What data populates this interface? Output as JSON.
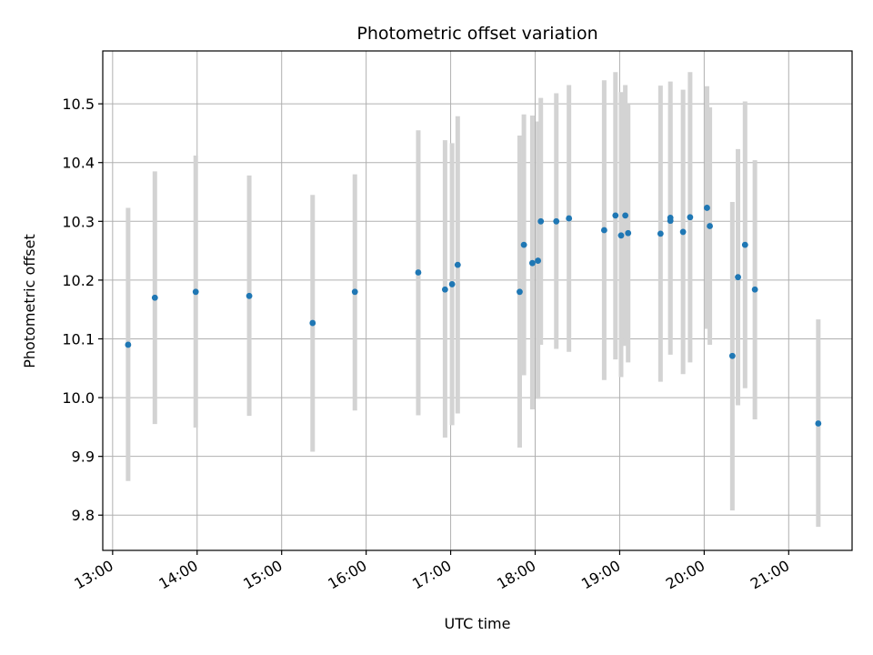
{
  "chart_data": {
    "type": "scatter",
    "title": "Photometric offset variation",
    "xlabel": "UTC time",
    "ylabel": "Photometric offset",
    "x_unit": "UTC time of day (HH:MM)",
    "xlim": [
      "12:53",
      "21:45"
    ],
    "ylim": [
      9.74,
      10.59
    ],
    "grid": true,
    "x_ticks": [
      "13:00",
      "14:00",
      "15:00",
      "16:00",
      "17:00",
      "18:00",
      "19:00",
      "20:00",
      "21:00"
    ],
    "y_ticks": [
      9.8,
      9.9,
      10.0,
      10.1,
      10.2,
      10.3,
      10.4,
      10.5
    ],
    "y_tick_labels": [
      "9.8",
      "9.9",
      "10.0",
      "10.1",
      "10.2",
      "10.3",
      "10.4",
      "10.5"
    ],
    "colors": {
      "point": "#1f77b4",
      "errorbar": "#d3d3d3",
      "grid": "#b0b0b0"
    },
    "points": [
      {
        "x": "13:11",
        "y": 10.09,
        "low": 9.858,
        "high": 10.323
      },
      {
        "x": "13:30",
        "y": 10.17,
        "low": 9.955,
        "high": 10.385
      },
      {
        "x": "13:59",
        "y": 10.18,
        "low": 9.949,
        "high": 10.412
      },
      {
        "x": "14:37",
        "y": 10.173,
        "low": 9.969,
        "high": 10.378
      },
      {
        "x": "15:22",
        "y": 10.127,
        "low": 9.908,
        "high": 10.345
      },
      {
        "x": "15:52",
        "y": 10.18,
        "low": 9.978,
        "high": 10.38
      },
      {
        "x": "16:37",
        "y": 10.213,
        "low": 9.97,
        "high": 10.455
      },
      {
        "x": "16:56",
        "y": 10.184,
        "low": 9.932,
        "high": 10.438
      },
      {
        "x": "17:01",
        "y": 10.193,
        "low": 9.953,
        "high": 10.433
      },
      {
        "x": "17:05",
        "y": 10.226,
        "low": 9.973,
        "high": 10.479
      },
      {
        "x": "17:49",
        "y": 10.18,
        "low": 9.915,
        "high": 10.446
      },
      {
        "x": "17:52",
        "y": 10.26,
        "low": 10.038,
        "high": 10.482
      },
      {
        "x": "17:58",
        "y": 10.229,
        "low": 9.98,
        "high": 10.48
      },
      {
        "x": "18:02",
        "y": 10.233,
        "low": 9.998,
        "high": 10.47
      },
      {
        "x": "18:04",
        "y": 10.3,
        "low": 10.09,
        "high": 10.51
      },
      {
        "x": "18:15",
        "y": 10.3,
        "low": 10.083,
        "high": 10.518
      },
      {
        "x": "18:24",
        "y": 10.305,
        "low": 10.078,
        "high": 10.532
      },
      {
        "x": "18:49",
        "y": 10.285,
        "low": 10.03,
        "high": 10.54
      },
      {
        "x": "18:57",
        "y": 10.31,
        "low": 10.065,
        "high": 10.554
      },
      {
        "x": "19:01",
        "y": 10.276,
        "low": 10.035,
        "high": 10.52
      },
      {
        "x": "19:04",
        "y": 10.31,
        "low": 10.088,
        "high": 10.532
      },
      {
        "x": "19:06",
        "y": 10.28,
        "low": 10.06,
        "high": 10.5
      },
      {
        "x": "19:29",
        "y": 10.279,
        "low": 10.027,
        "high": 10.531
      },
      {
        "x": "19:36",
        "y": 10.301,
        "low": 10.073,
        "high": 10.538
      },
      {
        "x": "19:36",
        "y": 10.306,
        "low": 10.1,
        "high": 10.5
      },
      {
        "x": "19:45",
        "y": 10.282,
        "low": 10.04,
        "high": 10.524
      },
      {
        "x": "19:50",
        "y": 10.307,
        "low": 10.06,
        "high": 10.554
      },
      {
        "x": "20:02",
        "y": 10.323,
        "low": 10.117,
        "high": 10.53
      },
      {
        "x": "20:04",
        "y": 10.292,
        "low": 10.09,
        "high": 10.494
      },
      {
        "x": "20:20",
        "y": 10.071,
        "low": 9.808,
        "high": 10.333
      },
      {
        "x": "20:24",
        "y": 10.205,
        "low": 9.987,
        "high": 10.423
      },
      {
        "x": "20:29",
        "y": 10.26,
        "low": 10.016,
        "high": 10.504
      },
      {
        "x": "20:36",
        "y": 10.184,
        "low": 9.963,
        "high": 10.404
      },
      {
        "x": "21:21",
        "y": 9.956,
        "low": 9.78,
        "high": 10.133
      }
    ]
  }
}
